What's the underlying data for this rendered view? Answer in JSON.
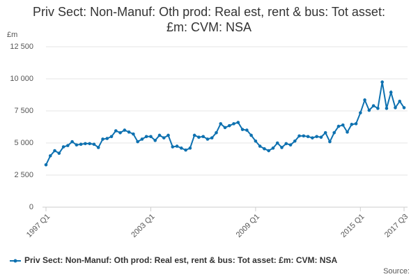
{
  "chart_data": {
    "type": "line",
    "title": "Priv Sect: Non-Manuf: Oth prod: Real est, rent & bus: Tot asset: £m: CVM: NSA",
    "y_label": "£m",
    "source": "Source:",
    "categories": [
      "1997 Q1",
      null,
      null,
      null,
      null,
      null,
      null,
      null,
      null,
      null,
      null,
      null,
      null,
      null,
      null,
      null,
      null,
      null,
      null,
      null,
      null,
      null,
      null,
      null,
      "2003 Q1",
      null,
      null,
      null,
      null,
      null,
      null,
      null,
      null,
      null,
      null,
      null,
      null,
      null,
      null,
      null,
      null,
      null,
      null,
      null,
      null,
      null,
      null,
      null,
      "2009 Q1",
      null,
      null,
      null,
      null,
      null,
      null,
      null,
      null,
      null,
      null,
      null,
      null,
      null,
      null,
      null,
      null,
      null,
      null,
      null,
      null,
      null,
      null,
      null,
      "2015 Q1",
      null,
      null,
      null,
      null,
      null,
      null,
      null,
      null,
      null,
      "2017 Q3"
    ],
    "series": [
      {
        "name": "Priv Sect: Non-Manuf: Oth prod: Real est, rent & bus: Tot asset: £m: CVM: NSA",
        "color": "#0e71b0",
        "values": [
          3300,
          4000,
          4400,
          4200,
          4700,
          4800,
          5100,
          4850,
          4900,
          4950,
          4950,
          4900,
          4650,
          5300,
          5350,
          5500,
          5950,
          5800,
          6000,
          5850,
          5700,
          5100,
          5300,
          5500,
          5500,
          5200,
          5600,
          5400,
          5600,
          4700,
          4750,
          4600,
          4450,
          4600,
          5600,
          5450,
          5500,
          5300,
          5400,
          5800,
          6500,
          6200,
          6350,
          6500,
          6600,
          6050,
          6000,
          5600,
          5150,
          4750,
          4550,
          4400,
          4600,
          5000,
          4650,
          4950,
          4850,
          5150,
          5550,
          5550,
          5500,
          5400,
          5500,
          5450,
          5800,
          5100,
          5800,
          6300,
          6400,
          5850,
          6450,
          6500,
          7350,
          8350,
          7550,
          7900,
          7700,
          9750,
          7700,
          8950,
          7750,
          8250,
          7750
        ]
      }
    ],
    "ylim": [
      0,
      12500
    ],
    "yticks": [
      0,
      {
        "value": 2500,
        "label": "2 500"
      },
      {
        "value": 5000,
        "label": "5 000"
      },
      {
        "value": 7500,
        "label": "7 500"
      },
      {
        "value": 10000,
        "label": "10 000"
      },
      {
        "value": 12500,
        "label": "12 500"
      }
    ],
    "grid": true
  }
}
